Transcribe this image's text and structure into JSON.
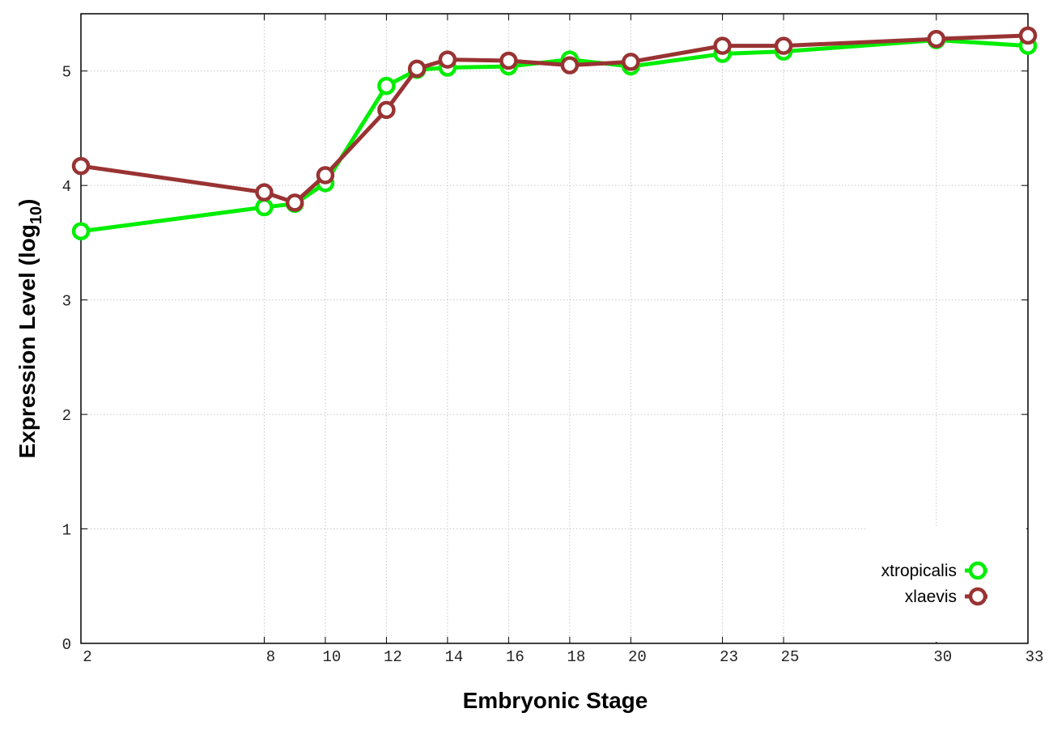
{
  "chart_data": {
    "type": "line",
    "xlabel": "Embryonic Stage",
    "ylabel": "Expression Level (log",
    "ylabel_subscript": "10",
    "ylabel_end": ")",
    "x": [
      2,
      8,
      9,
      10,
      12,
      13,
      14,
      16,
      18,
      20,
      23,
      25,
      30,
      33
    ],
    "series": [
      {
        "name": "xtropicalis",
        "color": "#00ee00",
        "values": [
          3.6,
          3.81,
          3.84,
          4.02,
          4.87,
          5.01,
          5.03,
          5.04,
          5.1,
          5.04,
          5.15,
          5.17,
          5.27,
          5.22
        ]
      },
      {
        "name": "xlaevis",
        "color": "#993333",
        "values": [
          4.17,
          3.94,
          3.85,
          4.09,
          4.66,
          5.02,
          5.1,
          5.09,
          5.05,
          5.08,
          5.22,
          5.22,
          5.28,
          5.31
        ]
      }
    ],
    "xlim": [
      2,
      33
    ],
    "xticks": [
      2,
      8,
      10,
      12,
      14,
      16,
      18,
      20,
      23,
      25,
      30,
      33
    ],
    "ylim": [
      0,
      5.5
    ],
    "yticks": [
      0,
      1,
      2,
      3,
      4,
      5
    ],
    "grid": true,
    "legend": "lower right"
  }
}
